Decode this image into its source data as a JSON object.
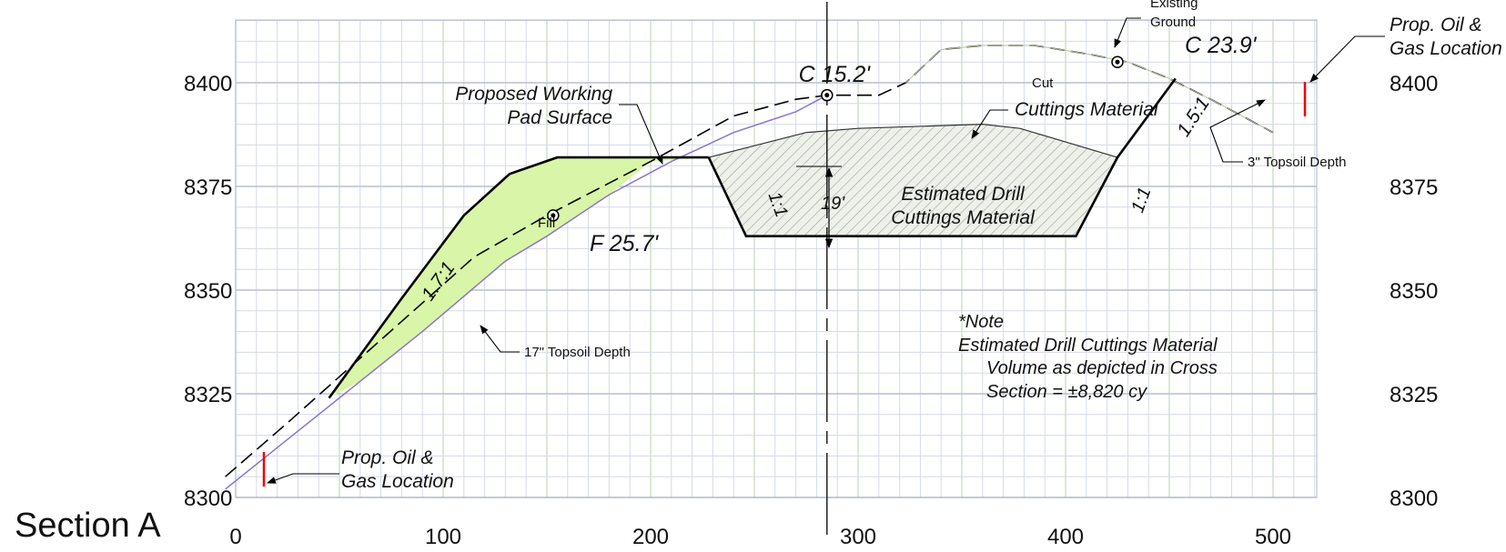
{
  "section_title": "Section A",
  "chart_data": {
    "type": "cross-section",
    "x_ticks": [
      0,
      100,
      200,
      300,
      400,
      500
    ],
    "y_ticks": [
      8300,
      8325,
      8350,
      8375,
      8400
    ],
    "xlim": [
      0,
      520
    ],
    "ylim": [
      8300,
      8419
    ],
    "centerline_x": 285,
    "existing_ground": [
      [
        -5,
        8305
      ],
      [
        25,
        8318
      ],
      [
        70,
        8338
      ],
      [
        115,
        8358
      ],
      [
        150,
        8368
      ],
      [
        200,
        8381
      ],
      [
        240,
        8392
      ],
      [
        270,
        8396
      ],
      [
        285,
        8397
      ],
      [
        310,
        8397
      ],
      [
        323,
        8400
      ],
      [
        340,
        8408
      ],
      [
        360,
        8409
      ],
      [
        385,
        8409
      ],
      [
        410,
        8407
      ],
      [
        430,
        8405
      ],
      [
        450,
        8401
      ],
      [
        470,
        8396
      ],
      [
        500,
        8388
      ]
    ],
    "topsoil_line": [
      [
        -5,
        8302
      ],
      [
        40,
        8320
      ],
      [
        90,
        8340
      ],
      [
        130,
        8357
      ],
      [
        150,
        8363
      ],
      [
        180,
        8373
      ],
      [
        210,
        8381
      ],
      [
        240,
        8388
      ],
      [
        270,
        8393
      ],
      [
        285,
        8397
      ]
    ],
    "pad_surface": [
      [
        45,
        8324
      ],
      [
        80,
        8348
      ],
      [
        110,
        8368
      ],
      [
        132,
        8378
      ],
      [
        155,
        8382
      ],
      [
        228,
        8382
      ]
    ],
    "pit_outline": [
      [
        228,
        8382
      ],
      [
        246,
        8363
      ],
      [
        405,
        8363
      ],
      [
        425,
        8382
      ],
      [
        453,
        8401
      ]
    ],
    "cuttings_top": [
      [
        228,
        8382
      ],
      [
        275,
        8388
      ],
      [
        300,
        8389
      ],
      [
        360,
        8390
      ],
      [
        378,
        8389
      ],
      [
        425,
        8382
      ]
    ],
    "markers": [
      {
        "label": "C 15.2'",
        "x": 285,
        "y": 8397
      },
      {
        "label": "C 23.9'",
        "x": 425,
        "y": 8405
      },
      {
        "label": "F 25.7'",
        "x": 153,
        "y": 8368
      }
    ],
    "labels": {
      "existing_ground": [
        "Existing",
        "Ground"
      ],
      "prop_oil_gas_top": [
        "Prop. Oil &",
        "Gas Location"
      ],
      "prop_oil_gas_bottom": [
        "Prop. Oil &",
        "Gas Location"
      ],
      "proposed_pad": [
        "Proposed Working",
        "Pad Surface"
      ],
      "cut": "Cut",
      "fill": "Fill",
      "cuttings_material": "Cuttings Material",
      "estimated_drill": [
        "Estimated Drill",
        "Cuttings Material"
      ],
      "topsoil_3": "3\" Topsoil Depth",
      "topsoil_17": "17\" Topsoil Depth",
      "depth_19": "19'",
      "slope_17": "1.7:1",
      "slope_15": "1.5:1",
      "slope_11_left": "1:1",
      "slope_11_right": "1:1",
      "note": [
        "*Note",
        "Estimated Drill Cuttings Material",
        "Volume as depicted in Cross",
        "Section = ±8,820 cy"
      ]
    }
  }
}
